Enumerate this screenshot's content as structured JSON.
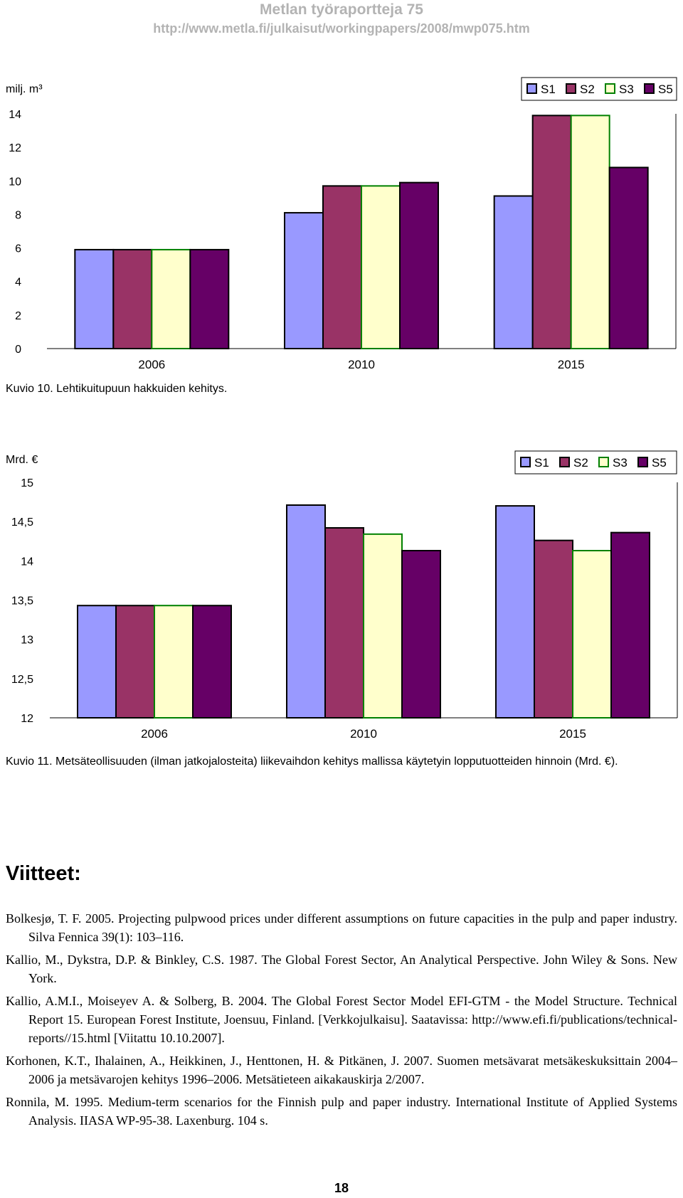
{
  "header": {
    "series_title": "Metlan työraportteja 75",
    "url": "http://www.metla.fi/julkaisut/workingpapers/2008/mwp075.htm"
  },
  "colors": {
    "S1": "#9999ff",
    "S2": "#993366",
    "S3": "#ffffcc",
    "S5": "#660066",
    "S3_border": "#008000"
  },
  "chart_data": [
    {
      "type": "bar",
      "ylabel": "milj. m³",
      "categories": [
        "2006",
        "2010",
        "2015"
      ],
      "series": [
        {
          "name": "S1",
          "values": [
            5.9,
            8.1,
            9.1
          ]
        },
        {
          "name": "S2",
          "values": [
            5.9,
            9.7,
            13.9
          ]
        },
        {
          "name": "S3",
          "values": [
            5.9,
            9.7,
            13.9
          ]
        },
        {
          "name": "S5",
          "values": [
            5.9,
            9.9,
            10.8
          ]
        }
      ],
      "ylim": [
        0,
        14
      ],
      "yticks": [
        "0",
        "2",
        "4",
        "6",
        "8",
        "10",
        "12",
        "14"
      ],
      "legend": "top-right",
      "grid": false
    },
    {
      "type": "bar",
      "ylabel": "Mrd. €",
      "categories": [
        "2006",
        "2010",
        "2015"
      ],
      "series": [
        {
          "name": "S1",
          "values": [
            13.43,
            14.71,
            14.7
          ]
        },
        {
          "name": "S2",
          "values": [
            13.43,
            14.42,
            14.26
          ]
        },
        {
          "name": "S3",
          "values": [
            13.43,
            14.34,
            14.13
          ]
        },
        {
          "name": "S5",
          "values": [
            13.43,
            14.13,
            14.36
          ]
        }
      ],
      "ylim": [
        12,
        15
      ],
      "yticks": [
        "12",
        "12,5",
        "13",
        "13,5",
        "14",
        "14,5",
        "15"
      ],
      "legend": "top-right",
      "grid": false
    }
  ],
  "captions": {
    "fig10": "Kuvio 10. Lehtikuitupuun hakkuiden kehitys.",
    "fig11": "Kuvio 11. Metsäteollisuuden (ilman jatkojalosteita) liikevaihdon kehitys mallissa käytetyin lopputuotteiden hinnoin (Mrd. €)."
  },
  "references_title": "Viitteet:",
  "references": [
    "Bolkesjø, T. F. 2005. Projecting pulpwood prices under different assumptions on future capacities in the pulp and paper industry. Silva Fennica 39(1): 103–116.",
    "Kallio, M., Dykstra, D.P. & Binkley, C.S. 1987. The Global Forest Sector, An Analytical Perspective. John Wiley & Sons. New York.",
    "Kallio, A.M.I., Moiseyev A. & Solberg, B. 2004. The Global Forest Sector Model EFI-GTM - the Model Structure. Technical Report 15. European Forest Institute, Joensuu, Finland. [Verkkojulkaisu]. Saatavissa: http://www.efi.fi/publications/technical-reports//15.html [Viitattu 10.10.2007].",
    "Korhonen, K.T., Ihalainen, A., Heikkinen, J., Henttonen, H. & Pitkänen, J. 2007. Suomen metsävarat metsäkeskuksittain 2004–2006 ja metsävarojen kehitys 1996–2006. Metsätieteen aikakauskirja 2/2007.",
    "Ronnila, M. 1995. Medium-term scenarios for the Finnish pulp and paper industry. International Institute of Applied Systems Analysis. IIASA WP-95-38. Laxenburg. 104 s."
  ],
  "page_number": "18"
}
